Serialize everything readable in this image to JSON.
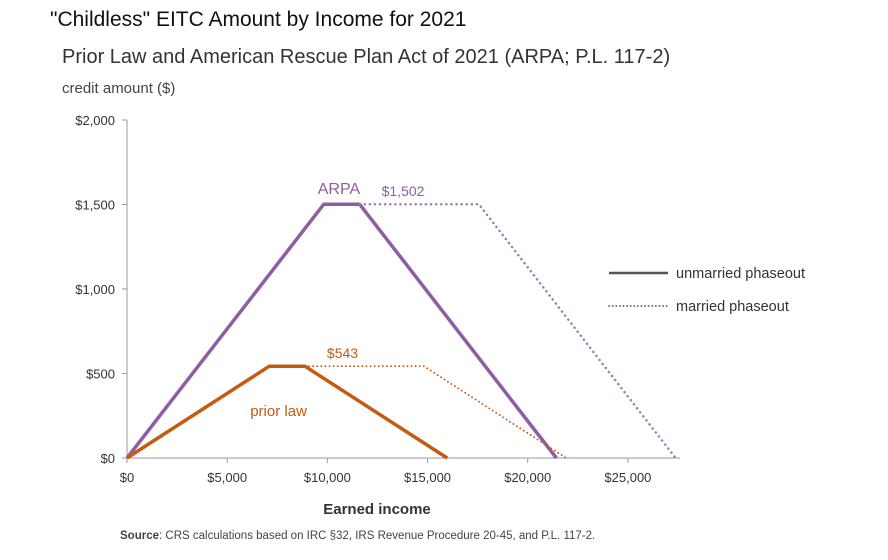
{
  "chart_data": {
    "type": "line",
    "title": "\"Childless\" EITC Amount by Income for 2021",
    "subtitle": "Prior Law and American Rescue Plan Act of 2021 (ARPA; P.L. 117-2)",
    "ylabel": "credit amount ($)",
    "xlabel": "Earned income",
    "xlim": [
      0,
      27500
    ],
    "ylim": [
      0,
      2000
    ],
    "x_ticks": [
      0,
      5000,
      10000,
      15000,
      20000,
      25000
    ],
    "x_tick_labels": [
      "$0",
      "$5,000",
      "$10,000",
      "$15,000",
      "$20,000",
      "$25,000"
    ],
    "y_ticks": [
      0,
      500,
      1000,
      1500,
      2000
    ],
    "y_tick_labels": [
      "$0",
      "$500",
      "$1,000",
      "$1,500",
      "$2,000"
    ],
    "grid": false,
    "legend": {
      "position": "right",
      "entries": [
        {
          "label": "unmarried phaseout",
          "style": "solid"
        },
        {
          "label": "married phaseout",
          "style": "dotted"
        }
      ]
    },
    "series": [
      {
        "name": "ARPA unmarried phaseout",
        "color": "#8e5ea2",
        "style": "solid",
        "points": [
          [
            0,
            0
          ],
          [
            9820,
            1502
          ],
          [
            11610,
            1502
          ],
          [
            21430,
            0
          ]
        ]
      },
      {
        "name": "ARPA married phaseout",
        "color": "#a07cb5",
        "style": "dotted",
        "points": [
          [
            11610,
            1502
          ],
          [
            17560,
            1502
          ],
          [
            27380,
            0
          ]
        ]
      },
      {
        "name": "prior law unmarried phaseout",
        "color": "#c55a11",
        "style": "solid",
        "points": [
          [
            0,
            0
          ],
          [
            7100,
            543
          ],
          [
            8880,
            543
          ],
          [
            15980,
            0
          ]
        ]
      },
      {
        "name": "prior law married phaseout",
        "color": "#c55a11",
        "style": "dotted",
        "points": [
          [
            8880,
            543
          ],
          [
            14820,
            543
          ],
          [
            21920,
            0
          ]
        ]
      }
    ],
    "annotations": [
      {
        "id": "arpa-label",
        "text": "ARPA",
        "color": "#8e5ea2"
      },
      {
        "id": "arpa-value",
        "text": "$1,502",
        "color": "#8e5ea2"
      },
      {
        "id": "prior-value",
        "text": "$543",
        "color": "#c55a11"
      },
      {
        "id": "prior-label",
        "text": "prior law",
        "color": "#c55a11"
      }
    ],
    "source_label": "Source",
    "source_text": ": CRS calculations based on IRC §32,  IRS Revenue Procedure 20-45, and P.L. 117-2."
  }
}
